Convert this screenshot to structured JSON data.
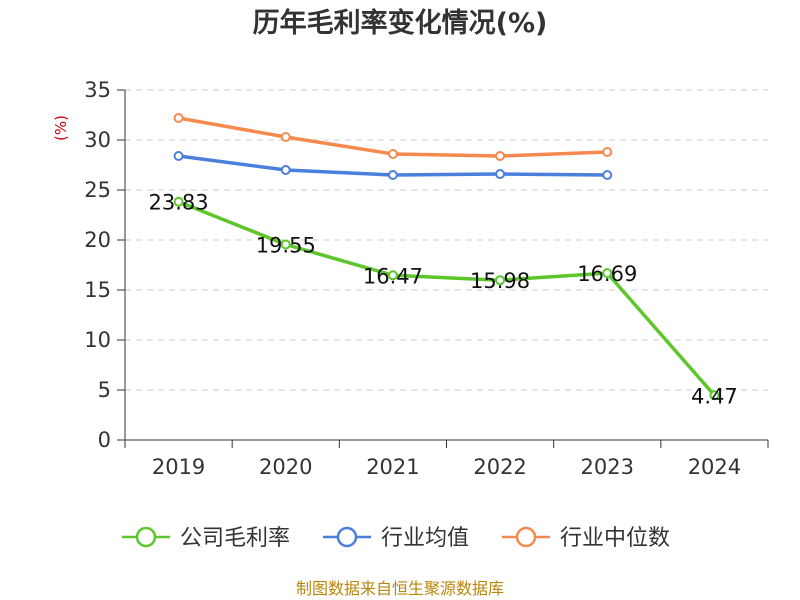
{
  "chart_data": {
    "type": "line",
    "title": "历年毛利率变化情况(%)",
    "ylabel": "(%)",
    "xlabel": "",
    "categories": [
      "2019",
      "2020",
      "2021",
      "2022",
      "2023",
      "2024"
    ],
    "ylim": [
      0,
      35
    ],
    "yticks": [
      0,
      5,
      10,
      15,
      20,
      25,
      30,
      35
    ],
    "grid": true,
    "legend_position": "bottom",
    "series": [
      {
        "name": "公司毛利率",
        "color": "#5dc62b",
        "values": [
          23.83,
          19.55,
          16.47,
          15.98,
          16.69,
          4.47
        ],
        "labels": [
          "23.83",
          "19.55",
          "16.47",
          "15.98",
          "16.69",
          "4.47"
        ]
      },
      {
        "name": "行业均值",
        "color": "#4a7fdb",
        "values": [
          28.4,
          27.0,
          26.5,
          26.6,
          26.5,
          null
        ]
      },
      {
        "name": "行业中位数",
        "color": "#f5894e",
        "values": [
          32.2,
          30.3,
          28.6,
          28.4,
          28.8,
          null
        ]
      }
    ]
  },
  "source": "制图数据来自恒生聚源数据库"
}
